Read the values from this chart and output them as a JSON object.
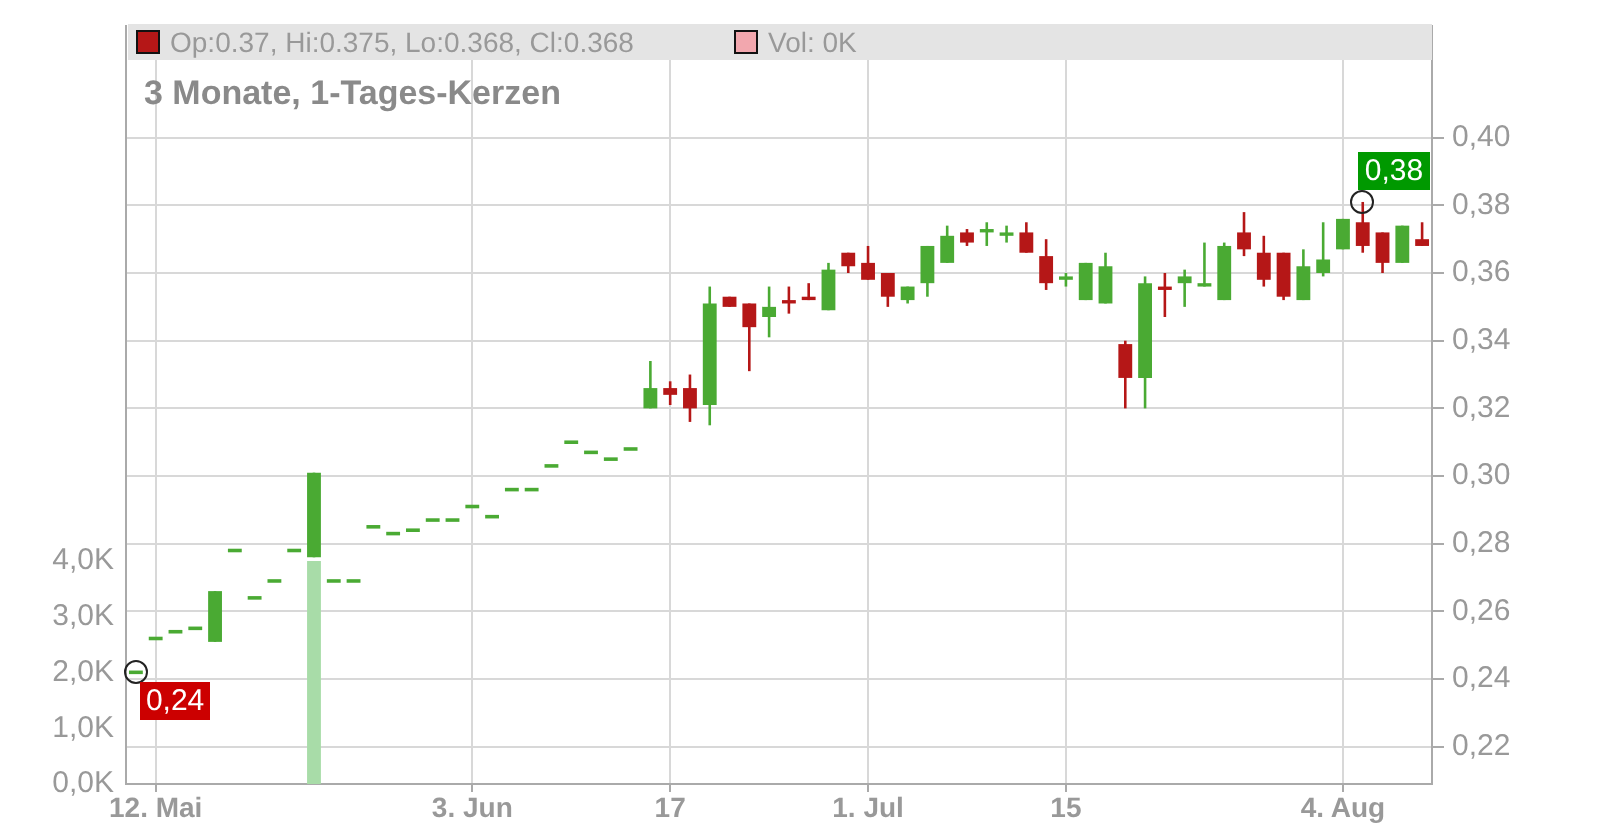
{
  "chart_data": {
    "type": "candlestick",
    "title": "3 Monate, 1-Tages-Kerzen",
    "annotations": [
      "Op:0.37, Hi:0.375, Lo:0.368, Cl:0.368",
      "Vol: 0K",
      "0,24",
      "0,38"
    ],
    "categories": [
      null,
      "12. Mai",
      null,
      null,
      null,
      null,
      null,
      null,
      null,
      null,
      null,
      null,
      null,
      null,
      null,
      null,
      null,
      "3. Jun",
      null,
      null,
      null,
      null,
      null,
      null,
      null,
      null,
      null,
      "17",
      null,
      null,
      null,
      null,
      null,
      null,
      null,
      null,
      null,
      "1. Jul",
      null,
      null,
      null,
      null,
      null,
      null,
      null,
      null,
      null,
      "15",
      null,
      null,
      null,
      null,
      null,
      null,
      null,
      null,
      null,
      null,
      null,
      null,
      null,
      "4. Aug",
      null,
      null,
      null,
      null
    ],
    "series": [
      {
        "type": "candlestick",
        "ohlc": [
          [
            0.242,
            0.242,
            0.242,
            0.242
          ],
          [
            0.252,
            0.252,
            0.252,
            0.252
          ],
          [
            0.254,
            0.254,
            0.254,
            0.254
          ],
          [
            0.255,
            0.255,
            0.255,
            0.255
          ],
          [
            0.251,
            0.266,
            0.251,
            0.266
          ],
          [
            0.278,
            0.278,
            0.278,
            0.278
          ],
          [
            0.264,
            0.264,
            0.264,
            0.264
          ],
          [
            0.269,
            0.269,
            0.269,
            0.269
          ],
          [
            0.278,
            0.278,
            0.278,
            0.278
          ],
          [
            0.276,
            0.301,
            0.276,
            0.301
          ],
          [
            0.269,
            0.269,
            0.269,
            0.269
          ],
          [
            0.269,
            0.269,
            0.269,
            0.269
          ],
          [
            0.285,
            0.285,
            0.285,
            0.285
          ],
          [
            0.283,
            0.283,
            0.283,
            0.283
          ],
          [
            0.284,
            0.284,
            0.284,
            0.284
          ],
          [
            0.287,
            0.287,
            0.287,
            0.287
          ],
          [
            0.287,
            0.287,
            0.287,
            0.287
          ],
          [
            0.291,
            0.291,
            0.291,
            0.291
          ],
          [
            0.288,
            0.288,
            0.288,
            0.288
          ],
          [
            0.296,
            0.296,
            0.296,
            0.296
          ],
          [
            0.296,
            0.296,
            0.296,
            0.296
          ],
          [
            0.303,
            0.303,
            0.303,
            0.303
          ],
          [
            0.31,
            0.31,
            0.31,
            0.31
          ],
          [
            0.307,
            0.307,
            0.307,
            0.307
          ],
          [
            0.305,
            0.305,
            0.305,
            0.305
          ],
          [
            0.308,
            0.308,
            0.308,
            0.308
          ],
          [
            0.32,
            0.334,
            0.32,
            0.326
          ],
          [
            0.326,
            0.328,
            0.321,
            0.324
          ],
          [
            0.326,
            0.33,
            0.316,
            0.32
          ],
          [
            0.321,
            0.356,
            0.315,
            0.351
          ],
          [
            0.353,
            0.353,
            0.35,
            0.35
          ],
          [
            0.351,
            0.351,
            0.331,
            0.344
          ],
          [
            0.347,
            0.356,
            0.341,
            0.35
          ],
          [
            0.352,
            0.356,
            0.348,
            0.351
          ],
          [
            0.353,
            0.357,
            0.352,
            0.352
          ],
          [
            0.349,
            0.363,
            0.349,
            0.361
          ],
          [
            0.366,
            0.366,
            0.36,
            0.362
          ],
          [
            0.363,
            0.368,
            0.358,
            0.358
          ],
          [
            0.36,
            0.36,
            0.35,
            0.353
          ],
          [
            0.352,
            0.356,
            0.351,
            0.356
          ],
          [
            0.357,
            0.368,
            0.353,
            0.368
          ],
          [
            0.363,
            0.374,
            0.363,
            0.371
          ],
          [
            0.372,
            0.373,
            0.368,
            0.369
          ],
          [
            0.372,
            0.375,
            0.368,
            0.373
          ],
          [
            0.371,
            0.374,
            0.369,
            0.372
          ],
          [
            0.372,
            0.375,
            0.366,
            0.366
          ],
          [
            0.365,
            0.37,
            0.355,
            0.357
          ],
          [
            0.358,
            0.36,
            0.356,
            0.359
          ],
          [
            0.352,
            0.363,
            0.352,
            0.363
          ],
          [
            0.351,
            0.366,
            0.351,
            0.362
          ],
          [
            0.339,
            0.34,
            0.32,
            0.329
          ],
          [
            0.329,
            0.359,
            0.32,
            0.357
          ],
          [
            0.356,
            0.36,
            0.347,
            0.355
          ],
          [
            0.357,
            0.361,
            0.35,
            0.359
          ],
          [
            0.356,
            0.369,
            0.356,
            0.357
          ],
          [
            0.352,
            0.369,
            0.352,
            0.368
          ],
          [
            0.372,
            0.378,
            0.365,
            0.367
          ],
          [
            0.366,
            0.371,
            0.356,
            0.358
          ],
          [
            0.366,
            0.366,
            0.352,
            0.353
          ],
          [
            0.352,
            0.367,
            0.352,
            0.362
          ],
          [
            0.36,
            0.375,
            0.359,
            0.364
          ],
          [
            0.367,
            0.376,
            0.367,
            0.376
          ],
          [
            0.375,
            0.381,
            0.366,
            0.368
          ],
          [
            0.372,
            0.372,
            0.36,
            0.363
          ],
          [
            0.363,
            0.374,
            0.363,
            0.374
          ],
          [
            0.37,
            0.375,
            0.368,
            0.368
          ]
        ],
        "colors": [
          "#4aaa33",
          "#4aaa33",
          "#4aaa33",
          "#4aaa33",
          "#4aaa33",
          "#4aaa33",
          "#4aaa33",
          "#4aaa33",
          "#4aaa33",
          "#4aaa33",
          "#4aaa33",
          "#4aaa33",
          "#4aaa33",
          "#4aaa33",
          "#4aaa33",
          "#4aaa33",
          "#4aaa33",
          "#4aaa33",
          "#4aaa33",
          "#4aaa33",
          "#4aaa33",
          "#4aaa33",
          "#4aaa33",
          "#4aaa33",
          "#4aaa33",
          "#4aaa33",
          "#4aaa33",
          "#b51717",
          "#b51717",
          "#4aaa33",
          "#b51717",
          "#b51717",
          "#4aaa33",
          "#b51717",
          "#b51717",
          "#4aaa33",
          "#b51717",
          "#b51717",
          "#b51717",
          "#4aaa33",
          "#4aaa33",
          "#4aaa33",
          "#b51717",
          "#4aaa33",
          "#4aaa33",
          "#b51717",
          "#b51717",
          "#4aaa33",
          "#4aaa33",
          "#4aaa33",
          "#b51717",
          "#4aaa33",
          "#b51717",
          "#4aaa33",
          "#4aaa33",
          "#4aaa33",
          "#b51717",
          "#b51717",
          "#b51717",
          "#4aaa33",
          "#4aaa33",
          "#4aaa33",
          "#b51717",
          "#b51717",
          "#4aaa33",
          "#b51717"
        ]
      },
      {
        "type": "bar",
        "axis": "y2",
        "color": "#a8dca8",
        "values": [
          0,
          0,
          0,
          0,
          0,
          0,
          0,
          0,
          0,
          4.0,
          0,
          0,
          0,
          0,
          0,
          0,
          0,
          0,
          0,
          0,
          0,
          0,
          0,
          0,
          0,
          0,
          0,
          0,
          0,
          0,
          0,
          0,
          0,
          0,
          0,
          0,
          0,
          0,
          0,
          0,
          0,
          0,
          0,
          0,
          0,
          0,
          0,
          0,
          0,
          0,
          0,
          0,
          0,
          0,
          0,
          0,
          0,
          0,
          0,
          0,
          0,
          0,
          0,
          0,
          0,
          0
        ]
      }
    ],
    "ylim": [
      0.209,
      0.433
    ],
    "yticks": [
      {
        "value": 0.22,
        "label": "0,22"
      },
      {
        "value": 0.24,
        "label": "0,24"
      },
      {
        "value": 0.26,
        "label": "0,26"
      },
      {
        "value": 0.28,
        "label": "0,28"
      },
      {
        "value": 0.3,
        "label": "0,30"
      },
      {
        "value": 0.32,
        "label": "0,32"
      },
      {
        "value": 0.34,
        "label": "0,34"
      },
      {
        "value": 0.36,
        "label": "0,36"
      },
      {
        "value": 0.38,
        "label": "0,38"
      },
      {
        "value": 0.4,
        "label": "0,40"
      }
    ],
    "y2lim": [
      0,
      13.6
    ],
    "y2ticks": [
      {
        "value": 0,
        "label": "0,0K"
      },
      {
        "value": 1,
        "label": "1,0K"
      },
      {
        "value": 2,
        "label": "2,0K"
      },
      {
        "value": 3,
        "label": "3,0K"
      },
      {
        "value": 4,
        "label": "4,0K"
      }
    ],
    "grid": true,
    "legend": false
  }
}
